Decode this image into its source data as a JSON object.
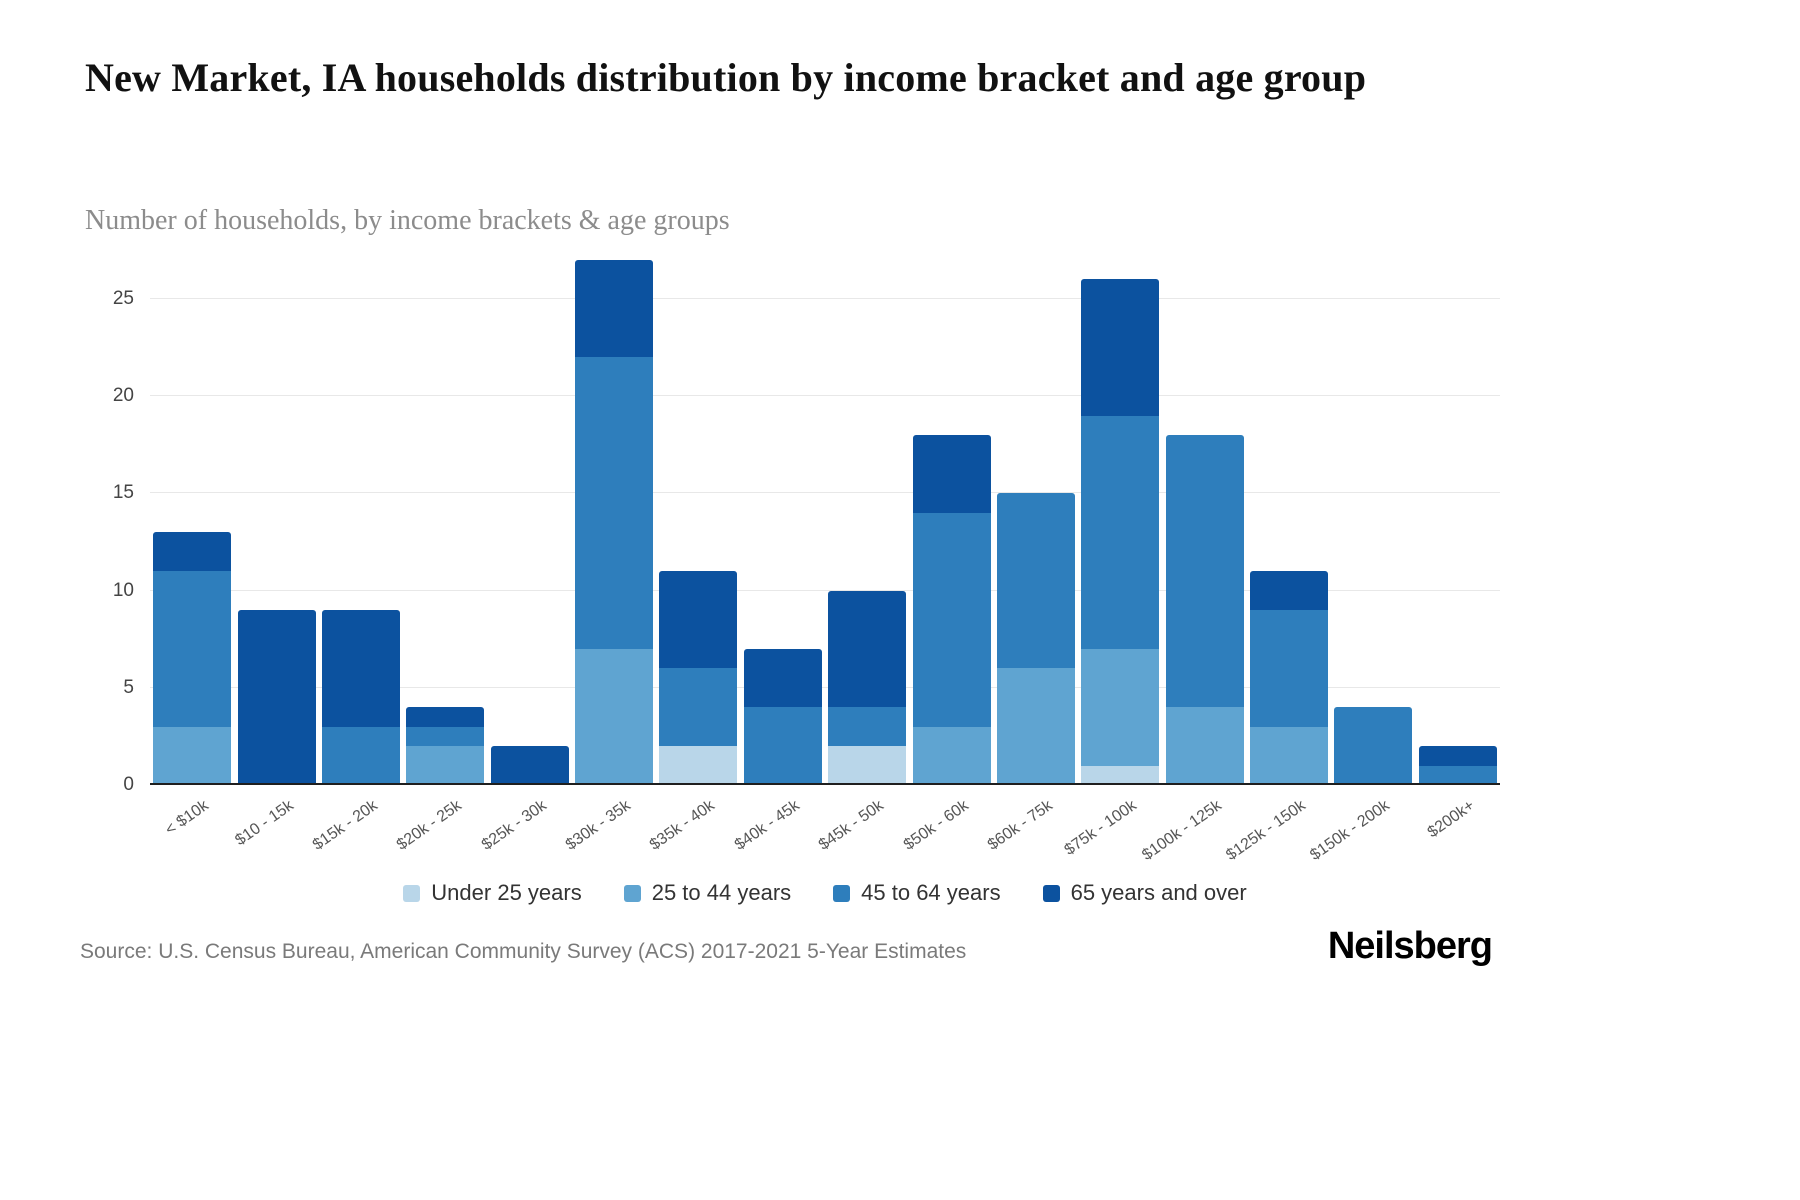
{
  "page": {
    "title": "New Market, IA households distribution by income bracket and age group",
    "subtitle": "Number of households, by income brackets & age groups",
    "source": "Source: U.S. Census Bureau, American Community Survey (ACS) 2017-2021 5-Year Estimates",
    "brand": "Neilsberg"
  },
  "chart_data": {
    "type": "bar",
    "stacked": true,
    "title": "New Market, IA households distribution by income bracket and age group",
    "subtitle": "Number of households, by income brackets & age groups",
    "xlabel": "",
    "ylabel": "",
    "grid": true,
    "legend_position": "bottom",
    "ymax": 27,
    "yticks": [
      0,
      5,
      10,
      15,
      20,
      25
    ],
    "categories": [
      "< $10k",
      "$10 - 15k",
      "$15k - 20k",
      "$20k - 25k",
      "$25k - 30k",
      "$30k - 35k",
      "$35k - 40k",
      "$40k - 45k",
      "$45k - 50k",
      "$50k - 60k",
      "$60k - 75k",
      "$75k - 100k",
      "$100k - 125k",
      "$125k - 150k",
      "$150k - 200k",
      "$200k+"
    ],
    "series": [
      {
        "name": "Under 25 years",
        "color": "#b9d6e9",
        "values": [
          0,
          0,
          0,
          0,
          0,
          0,
          2,
          0,
          2,
          0,
          0,
          1,
          0,
          0,
          0,
          0
        ]
      },
      {
        "name": "25 to 44 years",
        "color": "#5fa4d1",
        "values": [
          3,
          0,
          0,
          2,
          0,
          7,
          0,
          0,
          0,
          3,
          6,
          6,
          4,
          3,
          0,
          0
        ]
      },
      {
        "name": "45 to 64 years",
        "color": "#2e7ebc",
        "values": [
          8,
          0,
          3,
          1,
          0,
          15,
          4,
          4,
          2,
          11,
          9,
          12,
          14,
          6,
          4,
          1
        ]
      },
      {
        "name": "65 years and over",
        "color": "#0c529f",
        "values": [
          2,
          9,
          6,
          1,
          2,
          5,
          5,
          3,
          6,
          4,
          0,
          7,
          0,
          2,
          0,
          1
        ]
      }
    ],
    "totals": [
      13,
      9,
      9,
      4,
      2,
      27,
      11,
      7,
      10,
      18,
      15,
      26,
      18,
      11,
      4,
      2
    ]
  }
}
